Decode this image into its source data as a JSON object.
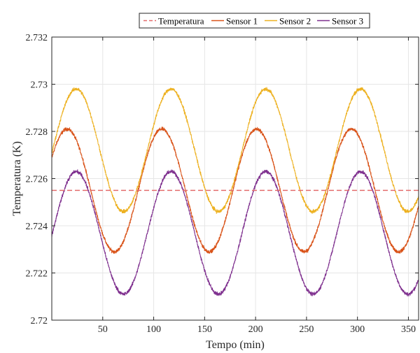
{
  "chart_data": {
    "type": "line",
    "title": "",
    "xlabel": "Tempo (min)",
    "ylabel": "Temperatura (K)",
    "xlim": [
      0,
      360
    ],
    "ylim": [
      2.72,
      2.732
    ],
    "xticks": [
      50,
      100,
      150,
      200,
      250,
      300,
      350
    ],
    "yticks": [
      2.72,
      2.722,
      2.724,
      2.726,
      2.728,
      2.73,
      2.732
    ],
    "xtick_labels": [
      "50",
      "100",
      "150",
      "200",
      "250",
      "300",
      "350"
    ],
    "ytick_labels": [
      "2.72",
      "2.722",
      "2.724",
      "2.726",
      "2.728",
      "2.73",
      "2.732"
    ],
    "grid": true,
    "legend_position": "top-right",
    "series": [
      {
        "name": "Temperatura",
        "color": "#e36b6b",
        "style": "dashed",
        "constant": 2.7255
      },
      {
        "name": "Sensor 1",
        "color": "#d95319",
        "mean": 2.7255,
        "amplitude": 0.0026,
        "period_min": 93,
        "peak_min": 15,
        "noise": 0.00012
      },
      {
        "name": "Sensor 2",
        "color": "#edb120",
        "mean": 2.7272,
        "amplitude": 0.0026,
        "period_min": 93,
        "peak_min": 24,
        "noise": 0.00012
      },
      {
        "name": "Sensor 3",
        "color": "#7e2f8e",
        "mean": 2.7237,
        "amplitude": 0.0026,
        "period_min": 93,
        "peak_min": 24,
        "noise": 0.00012
      }
    ]
  }
}
